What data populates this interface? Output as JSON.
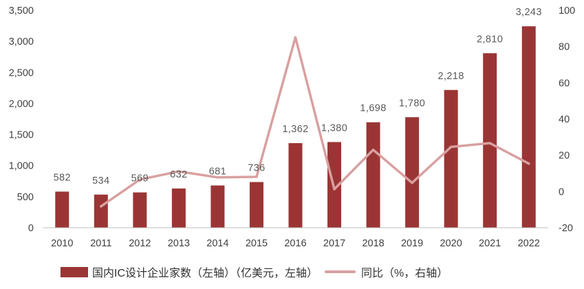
{
  "chart_data": {
    "type": "bar",
    "categories": [
      "2010",
      "2011",
      "2012",
      "2013",
      "2014",
      "2015",
      "2016",
      "2017",
      "2018",
      "2019",
      "2020",
      "2021",
      "2022"
    ],
    "series": [
      {
        "name": "国内IC设计企业家数（左轴）（亿美元，左轴）",
        "type": "bar",
        "axis": "left",
        "color": "#9B3535",
        "values": [
          582,
          534,
          569,
          632,
          681,
          736,
          1362,
          1380,
          1698,
          1780,
          2218,
          2810,
          3243
        ],
        "data_labels": [
          "582",
          "534",
          "569",
          "632",
          "681",
          "736",
          "1,362",
          "1,380",
          "1,698",
          "1,780",
          "2,218",
          "2,810",
          "3,243"
        ]
      },
      {
        "name": "同比（%，右轴）",
        "type": "line",
        "axis": "right",
        "color": "#D9A0A0",
        "values": [
          null,
          -8.2,
          6.6,
          11.1,
          7.8,
          8.1,
          85.1,
          1.3,
          23.0,
          4.8,
          24.6,
          26.7,
          15.4
        ]
      }
    ],
    "y_left": {
      "lim": [
        0,
        3500
      ],
      "ticks": [
        0,
        500,
        1000,
        1500,
        2000,
        2500,
        3000,
        3500
      ],
      "tick_labels": [
        "0",
        "500",
        "1,000",
        "1,500",
        "2,000",
        "2,500",
        "3,000",
        "3,500"
      ]
    },
    "y_right": {
      "lim": [
        -20,
        100
      ],
      "ticks": [
        -20,
        0,
        20,
        40,
        60,
        80,
        100
      ],
      "tick_labels": [
        "-20",
        "0",
        "20",
        "40",
        "60",
        "80",
        "100"
      ]
    },
    "grid": false,
    "legend": "bottom"
  }
}
